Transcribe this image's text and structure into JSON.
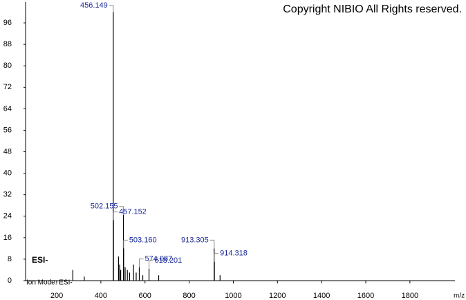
{
  "chart_data": {
    "type": "bar",
    "title": "Copyright NIBIO All Rights reserved.",
    "annotations": [
      "ESI-",
      "Ion Mode: ESI-"
    ],
    "x_label": "m/z",
    "xlim": [
      59,
      2004
    ],
    "ylim": [
      0,
      104
    ],
    "xticks": [
      200,
      400,
      600,
      800,
      1000,
      1200,
      1400,
      1600,
      1800
    ],
    "yticks": [
      0,
      8,
      16,
      24,
      32,
      40,
      48,
      56,
      64,
      72,
      80,
      88,
      96
    ],
    "color": "#000000",
    "x": [
      273,
      325,
      456.149,
      457.152,
      480,
      485,
      490,
      502.155,
      503.16,
      510,
      520,
      530,
      548,
      560,
      574.087,
      590,
      618.201,
      662,
      913.305,
      914.318,
      940
    ],
    "values": [
      4,
      1.5,
      100,
      22.5,
      9,
      6,
      4,
      24.5,
      12,
      5,
      4,
      3,
      6,
      3,
      5,
      2,
      4.4,
      2,
      12,
      7,
      2
    ],
    "labels": [
      null,
      null,
      "456.149",
      "457.152",
      null,
      null,
      null,
      "502.155",
      "503.160",
      null,
      null,
      null,
      null,
      null,
      "574.087",
      null,
      "618.201",
      null,
      "913.305",
      "914.318",
      null
    ]
  }
}
